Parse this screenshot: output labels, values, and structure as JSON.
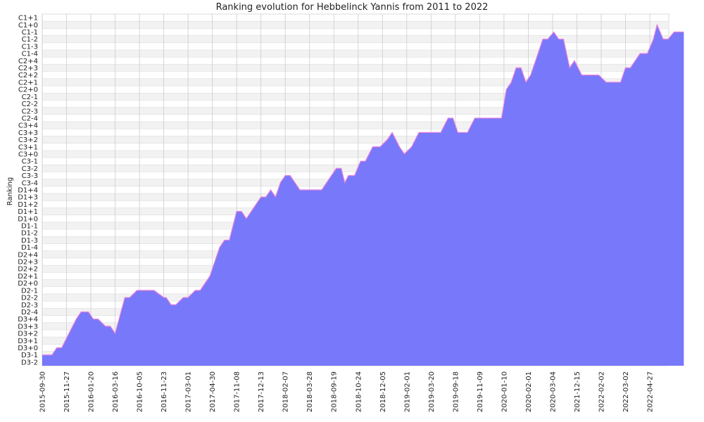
{
  "chart_data": {
    "type": "area",
    "title": "Ranking evolution for Hebbelinck Yannis from 2011 to 2022",
    "ylabel": "Ranking",
    "xlabel": "",
    "y_categories": [
      "D3-2",
      "D3-1",
      "D3+0",
      "D3+1",
      "D3+2",
      "D3+3",
      "D3+4",
      "D2-4",
      "D2-3",
      "D2-2",
      "D2-1",
      "D2+0",
      "D2+1",
      "D2+2",
      "D2+3",
      "D2+4",
      "D1-4",
      "D1-3",
      "D1-2",
      "D1-1",
      "D1+0",
      "D1+1",
      "D1+2",
      "D1+3",
      "D1+4",
      "C3-4",
      "C3-3",
      "C3-2",
      "C3-1",
      "C3+0",
      "C3+1",
      "C3+2",
      "C3+3",
      "C3+4",
      "C2-4",
      "C2-3",
      "C2-2",
      "C2-1",
      "C2+0",
      "C2+1",
      "C2+2",
      "C2+3",
      "C2+4",
      "C1-4",
      "C1-3",
      "C1-2",
      "C1-1",
      "C1+0",
      "C1+1"
    ],
    "x_tick_labels": [
      "2015-09-30",
      "2015-11-27",
      "2016-01-20",
      "2016-03-16",
      "2016-10-05",
      "2016-11-23",
      "2017-03-01",
      "2017-04-30",
      "2017-11-08",
      "2017-12-13",
      "2018-02-07",
      "2018-03-28",
      "2018-09-19",
      "2018-10-24",
      "2018-12-05",
      "2019-02-01",
      "2019-03-20",
      "2019-09-18",
      "2019-11-09",
      "2020-01-10",
      "2020-02-01",
      "2020-03-04",
      "2021-12-15",
      "2022-02-02",
      "2022-03-02",
      "2022-04-27"
    ],
    "x_index_range": [
      0,
      25.5
    ],
    "grid": true,
    "fill_color": "#7878fa",
    "line_color": "#e87ee0",
    "series": [
      {
        "points": [
          [
            0,
            "D3-1"
          ],
          [
            0.4,
            "D3-1"
          ],
          [
            0.6,
            "D3+0"
          ],
          [
            0.8,
            "D3+0"
          ],
          [
            1.1,
            "D3+2"
          ],
          [
            1.4,
            "D3+4"
          ],
          [
            1.6,
            "D2-4"
          ],
          [
            1.9,
            "D2-4"
          ],
          [
            2.1,
            "D3+4"
          ],
          [
            2.3,
            "D3+4"
          ],
          [
            2.6,
            "D3+3"
          ],
          [
            2.8,
            "D3+3"
          ],
          [
            3.0,
            "D3+2"
          ],
          [
            3.4,
            "D2-2"
          ],
          [
            3.6,
            "D2-2"
          ],
          [
            3.9,
            "D2-1"
          ],
          [
            4.6,
            "D2-1"
          ],
          [
            5.0,
            "D2-2"
          ],
          [
            5.1,
            "D2-2"
          ],
          [
            5.3,
            "D2-3"
          ],
          [
            5.5,
            "D2-3"
          ],
          [
            5.8,
            "D2-2"
          ],
          [
            6.0,
            "D2-2"
          ],
          [
            6.3,
            "D2-1"
          ],
          [
            6.5,
            "D2-1"
          ],
          [
            6.9,
            "D2+1"
          ],
          [
            7.3,
            "D1-4"
          ],
          [
            7.5,
            "D1-3"
          ],
          [
            7.7,
            "D1-3"
          ],
          [
            8.0,
            "D1+1"
          ],
          [
            8.2,
            "D1+1"
          ],
          [
            8.4,
            "D1+0"
          ],
          [
            8.6,
            "D1+1"
          ],
          [
            9.0,
            "D1+3"
          ],
          [
            9.2,
            "D1+3"
          ],
          [
            9.4,
            "D1+4"
          ],
          [
            9.6,
            "D1+3"
          ],
          [
            9.8,
            "C3-4"
          ],
          [
            10.0,
            "C3-3"
          ],
          [
            10.2,
            "C3-3"
          ],
          [
            10.6,
            "D1+4"
          ],
          [
            11.5,
            "D1+4"
          ],
          [
            12.1,
            "C3-2"
          ],
          [
            12.3,
            "C3-2"
          ],
          [
            12.45,
            "C3-4"
          ],
          [
            12.6,
            "C3-3"
          ],
          [
            12.85,
            "C3-3"
          ],
          [
            13.1,
            "C3-1"
          ],
          [
            13.3,
            "C3-1"
          ],
          [
            13.6,
            "C3+1"
          ],
          [
            13.9,
            "C3+1"
          ],
          [
            14.2,
            "C3+2"
          ],
          [
            14.4,
            "C3+3"
          ],
          [
            14.7,
            "C3+1"
          ],
          [
            14.9,
            "C3+0"
          ],
          [
            15.2,
            "C3+1"
          ],
          [
            15.5,
            "C3+3"
          ],
          [
            16.4,
            "C3+3"
          ],
          [
            16.7,
            "C2-4"
          ],
          [
            16.9,
            "C2-4"
          ],
          [
            17.1,
            "C3+3"
          ],
          [
            17.5,
            "C3+3"
          ],
          [
            17.8,
            "C2-4"
          ],
          [
            18.5,
            "C2-4"
          ],
          [
            18.9,
            "C2-4"
          ],
          [
            19.1,
            "C2+0"
          ],
          [
            19.3,
            "C2+1"
          ],
          [
            19.5,
            "C2+3"
          ],
          [
            19.7,
            "C2+3"
          ],
          [
            19.9,
            "C2+1"
          ],
          [
            20.1,
            "C2+2"
          ],
          [
            20.4,
            "C1-4"
          ],
          [
            20.6,
            "C1-2"
          ],
          [
            20.8,
            "C1-2"
          ],
          [
            21.05,
            "C1-1"
          ],
          [
            21.25,
            "C1-2"
          ],
          [
            21.45,
            "C1-2"
          ],
          [
            21.7,
            "C2+3"
          ],
          [
            21.9,
            "C2+4"
          ],
          [
            22.2,
            "C2+2"
          ],
          [
            22.3,
            "C2+2"
          ],
          [
            22.9,
            "C2+2"
          ],
          [
            23.2,
            "C2+1"
          ],
          [
            23.8,
            "C2+1"
          ],
          [
            24.0,
            "C2+3"
          ],
          [
            24.2,
            "C2+3"
          ],
          [
            24.6,
            "C1-4"
          ],
          [
            24.9,
            "C1-4"
          ],
          [
            25.15,
            "C1-2"
          ],
          [
            25.3,
            "C1+0"
          ],
          [
            25.55,
            "C1-2"
          ],
          [
            25.75,
            "C1-2"
          ],
          [
            26.0,
            "C1-1"
          ],
          [
            26.4,
            "C1-1"
          ]
        ]
      }
    ]
  }
}
